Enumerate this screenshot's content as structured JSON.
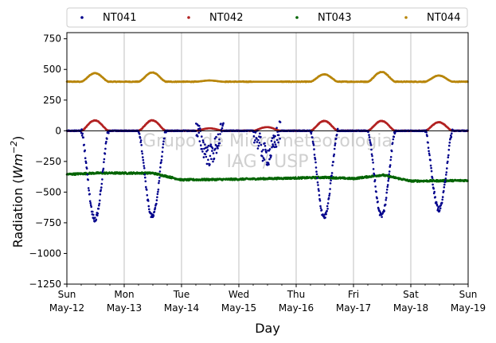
{
  "chart_data": {
    "type": "scatter",
    "title": "",
    "xlabel": "Day",
    "ylabel_main": "Radiation (",
    "ylabel_unit": "Wm",
    "ylabel_exp": "−2",
    "ylabel_close": ")",
    "ylim": [
      -1250,
      800
    ],
    "yticks": [
      750,
      500,
      250,
      0,
      -250,
      -500,
      -750,
      -1000,
      -1250
    ],
    "ytick_labels": [
      "750",
      "500",
      "250",
      "0",
      "−250",
      "−500",
      "−750",
      "−1000",
      "−1250"
    ],
    "xlim_days": [
      0,
      7
    ],
    "x_dates": [
      "May-12",
      "May-13",
      "May-14",
      "May-15",
      "May-16",
      "May-17",
      "May-18",
      "May-19"
    ],
    "x_weekdays": [
      "Sun",
      "Mon",
      "Tue",
      "Wed",
      "Thu",
      "Fri",
      "Sat",
      "Sun"
    ],
    "grid": "vertical at each day",
    "legend_position": "top, above plot",
    "watermark_line1": "Grupo de Micrometeorologia",
    "watermark_line2": "IAG / USP",
    "series": [
      {
        "name": "NT041",
        "color": "#00008b",
        "baseline": 0,
        "day_peaks": [
          {
            "day": "May-12",
            "value": -720
          },
          {
            "day": "May-13",
            "value": -700
          },
          {
            "day": "May-14",
            "value": -200
          },
          {
            "day": "May-15",
            "value": -200
          },
          {
            "day": "May-16",
            "value": -700
          },
          {
            "day": "May-17",
            "value": -690
          },
          {
            "day": "May-18",
            "value": -640
          }
        ]
      },
      {
        "name": "NT042",
        "color": "#b22222",
        "baseline": 0,
        "day_peaks": [
          {
            "day": "May-12",
            "value": 85
          },
          {
            "day": "May-13",
            "value": 85
          },
          {
            "day": "May-14",
            "value": 20
          },
          {
            "day": "May-15",
            "value": 30
          },
          {
            "day": "May-16",
            "value": 80
          },
          {
            "day": "May-17",
            "value": 80
          },
          {
            "day": "May-18",
            "value": 70
          }
        ]
      },
      {
        "name": "NT043",
        "color": "#006400",
        "baseline_points": [
          {
            "day": 0.0,
            "value": -355
          },
          {
            "day": 0.5,
            "value": -345
          },
          {
            "day": 1.0,
            "value": -345
          },
          {
            "day": 1.5,
            "value": -345
          },
          {
            "day": 2.0,
            "value": -400
          },
          {
            "day": 3.0,
            "value": -395
          },
          {
            "day": 4.0,
            "value": -385
          },
          {
            "day": 4.5,
            "value": -380
          },
          {
            "day": 5.0,
            "value": -390
          },
          {
            "day": 5.5,
            "value": -360
          },
          {
            "day": 6.0,
            "value": -410
          },
          {
            "day": 7.0,
            "value": -405
          }
        ]
      },
      {
        "name": "NT044",
        "color": "#b8860b",
        "baseline": 400,
        "day_peaks": [
          {
            "day": "May-12",
            "value": 470
          },
          {
            "day": "May-13",
            "value": 475
          },
          {
            "day": "May-14",
            "value": 410
          },
          {
            "day": "May-15",
            "value": 400
          },
          {
            "day": "May-16",
            "value": 460
          },
          {
            "day": "May-17",
            "value": 480
          },
          {
            "day": "May-18",
            "value": 450
          }
        ]
      }
    ]
  }
}
